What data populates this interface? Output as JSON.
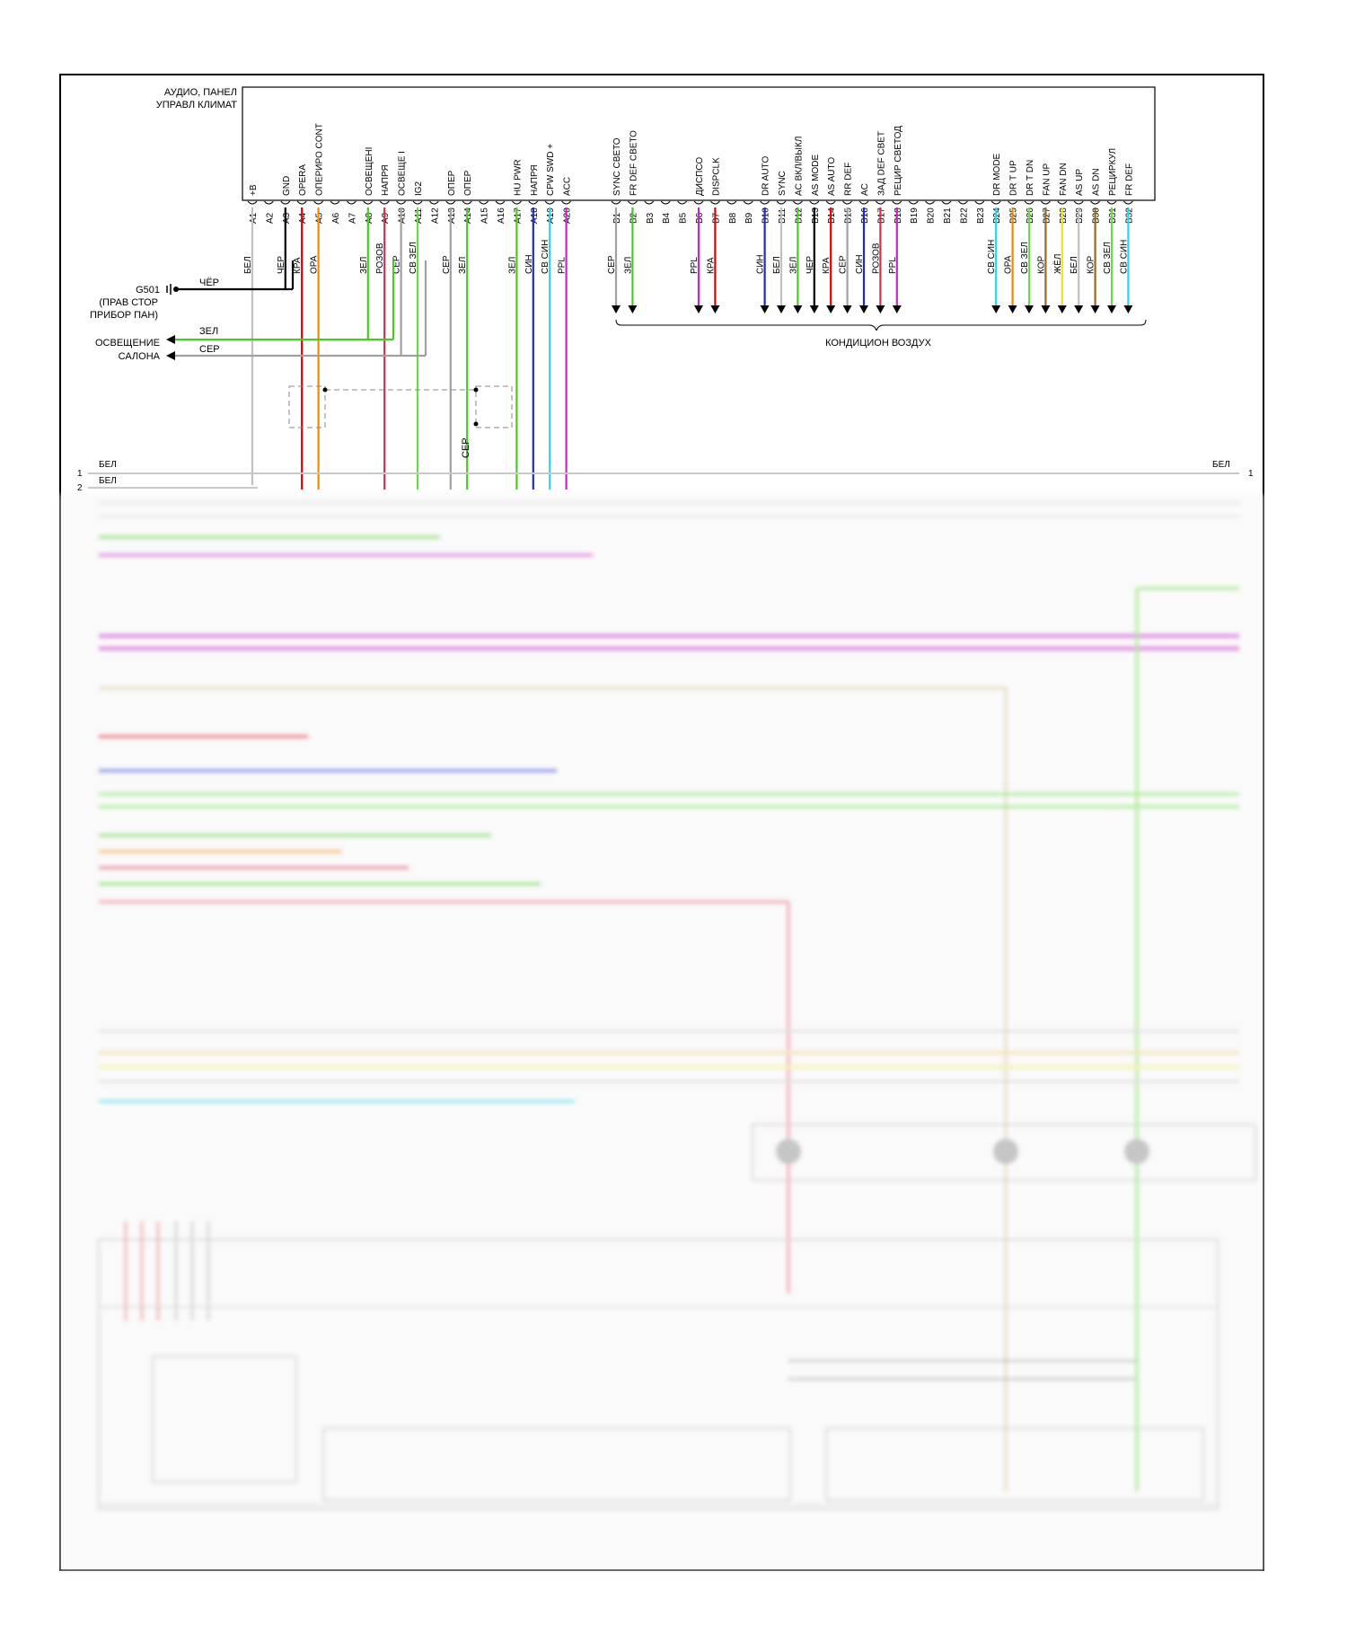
{
  "module": {
    "title_line1": "АУДИО, ПАНЕЛ",
    "title_line2": "УПРАВЛ КЛИМАТ"
  },
  "pins_a": [
    {
      "pin": "A1",
      "func": "+B",
      "wire": "БЕЛ",
      "color": "#c0c0c0"
    },
    {
      "pin": "A2",
      "func": "",
      "wire": "",
      "color": ""
    },
    {
      "pin": "A3",
      "func": "GND",
      "wire": "ЧЕР",
      "color": "#000000"
    },
    {
      "pin": "A4",
      "func": "OPERA",
      "wire": "КРА",
      "color": "#e00000"
    },
    {
      "pin": "A5",
      "func": "ОПЕРИРО CONT",
      "wire": "ОРА",
      "color": "#f08a00"
    },
    {
      "pin": "A6",
      "func": "",
      "wire": "",
      "color": ""
    },
    {
      "pin": "A7",
      "func": "",
      "wire": "",
      "color": ""
    },
    {
      "pin": "A8",
      "func": "ОСВЕЩЕНІ",
      "wire": "ЗЕЛ",
      "color": "#44cc22"
    },
    {
      "pin": "A9",
      "func": "НАПРЯ",
      "wire": "РОЗОВ",
      "color": "#d0304a"
    },
    {
      "pin": "A10",
      "func": "ОСВЕЩЕ І",
      "wire": "СЕР",
      "color": "#a0a0a0"
    },
    {
      "pin": "A11",
      "func": "IG2",
      "wire": "СВ ЗЕЛ",
      "color": "#66dd44"
    },
    {
      "pin": "A12",
      "func": "",
      "wire": "",
      "color": ""
    },
    {
      "pin": "A13",
      "func": "ОПЕР",
      "wire": "СЕР",
      "color": "#a0a0a0"
    },
    {
      "pin": "A14",
      "func": "ОПЕР",
      "wire": "ЗЕЛ",
      "color": "#44cc22"
    },
    {
      "pin": "A15",
      "func": "",
      "wire": "",
      "color": ""
    },
    {
      "pin": "A16",
      "func": "",
      "wire": "",
      "color": ""
    },
    {
      "pin": "A17",
      "func": "HU PWR",
      "wire": "ЗЕЛ",
      "color": "#44cc22"
    },
    {
      "pin": "A18",
      "func": "НАПРЯ",
      "wire": "СИН",
      "color": "#1a2ad0"
    },
    {
      "pin": "A19",
      "func": "CPW SWD +",
      "wire": "СВ СИН",
      "color": "#22d8e8"
    },
    {
      "pin": "A20",
      "func": "ACC",
      "wire": "PPL",
      "color": "#cc22cc"
    }
  ],
  "pins_b": [
    {
      "pin": "B1",
      "func": "SYNC СВЕТО",
      "wire": "СЕР",
      "color": "#a0a0a0"
    },
    {
      "pin": "B2",
      "func": "FR DEF СВЕТО",
      "wire": "ЗЕЛ",
      "color": "#44cc22"
    },
    {
      "pin": "B3",
      "func": "",
      "wire": "",
      "color": ""
    },
    {
      "pin": "B4",
      "func": "",
      "wire": "",
      "color": ""
    },
    {
      "pin": "B5",
      "func": "",
      "wire": "",
      "color": ""
    },
    {
      "pin": "B6",
      "func": "ДИСПСО",
      "wire": "PPL",
      "color": "#cc22cc"
    },
    {
      "pin": "B7",
      "func": "DISPCLK",
      "wire": "КРА",
      "color": "#e00000"
    },
    {
      "pin": "B8",
      "func": "",
      "wire": "",
      "color": ""
    },
    {
      "pin": "B9",
      "func": "",
      "wire": "",
      "color": ""
    },
    {
      "pin": "B10",
      "func": "DR AUTO",
      "wire": "СИН",
      "color": "#1a2ad0"
    },
    {
      "pin": "B11",
      "func": "SYNC",
      "wire": "БЕЛ",
      "color": "#c0c0c0"
    },
    {
      "pin": "B12",
      "func": "AC ВКЛ/ВЫКЛ",
      "wire": "ЗЕЛ",
      "color": "#44cc22"
    },
    {
      "pin": "B13",
      "func": "AS MODE",
      "wire": "ЧЕР",
      "color": "#000000"
    },
    {
      "pin": "B14",
      "func": "AS AUTO",
      "wire": "КРА",
      "color": "#e00000"
    },
    {
      "pin": "B15",
      "func": "RR DEF",
      "wire": "СЕР",
      "color": "#a0a0a0"
    },
    {
      "pin": "B16",
      "func": "AC",
      "wire": "СИН",
      "color": "#1a2ad0"
    },
    {
      "pin": "B17",
      "func": "ЗАД DEF СВЕТ",
      "wire": "РОЗОВ",
      "color": "#d0304a"
    },
    {
      "pin": "B18",
      "func": "РЕЦИР СВЕТОД",
      "wire": "PPL",
      "color": "#cc22cc"
    },
    {
      "pin": "B19",
      "func": "",
      "wire": "",
      "color": ""
    },
    {
      "pin": "B20",
      "func": "",
      "wire": "",
      "color": ""
    },
    {
      "pin": "B21",
      "func": "",
      "wire": "",
      "color": ""
    },
    {
      "pin": "B22",
      "func": "",
      "wire": "",
      "color": ""
    },
    {
      "pin": "B23",
      "func": "",
      "wire": "",
      "color": ""
    },
    {
      "pin": "B24",
      "func": "DR MODE",
      "wire": "СВ СИН",
      "color": "#22d8e8"
    },
    {
      "pin": "B25",
      "func": "DR T UP",
      "wire": "ОРА",
      "color": "#f08a00"
    },
    {
      "pin": "B26",
      "func": "DR T DN",
      "wire": "СВ ЗЕЛ",
      "color": "#66dd44"
    },
    {
      "pin": "B27",
      "func": "FAN UP",
      "wire": "КОР",
      "color": "#9a6a20"
    },
    {
      "pin": "B28",
      "func": "FAN DN",
      "wire": "ЖЁЛ",
      "color": "#f0e020"
    },
    {
      "pin": "B29",
      "func": "AS UP",
      "wire": "БЕЛ",
      "color": "#c0c0c0"
    },
    {
      "pin": "B30",
      "func": "AS DN",
      "wire": "КОР",
      "color": "#9a6a20"
    },
    {
      "pin": "B31",
      "func": "РЕЦИРКУЛ",
      "wire": "СВ ЗЕЛ",
      "color": "#66dd44"
    },
    {
      "pin": "B32",
      "func": "FR DEF",
      "wire": "СВ СИН",
      "color": "#22d8e8"
    }
  ],
  "ground": {
    "label": "G501",
    "sub1": "(ПРАВ СТОР",
    "sub2": "ПРИБОР ПАН)",
    "wire": "ЧЁР"
  },
  "outputs": [
    {
      "label1": "ОСВЕЩЕНИЕ",
      "label2": "",
      "wire": "ЗЕЛ",
      "color": "#44cc22"
    },
    {
      "label1": "",
      "label2": "САЛОНА",
      "wire": "СЕР",
      "color": "#a0a0a0"
    }
  ],
  "hvac_label": "КОНДИЦИОН ВОЗДУХ",
  "splice_wire": "СЕР",
  "bus_rows": [
    {
      "left_num": "1",
      "left_wire": "БЕЛ",
      "right_wire": "БЕЛ",
      "right_num": "1"
    },
    {
      "left_num": "2",
      "left_wire": "БЕЛ",
      "right_wire": "",
      "right_num": ""
    }
  ]
}
